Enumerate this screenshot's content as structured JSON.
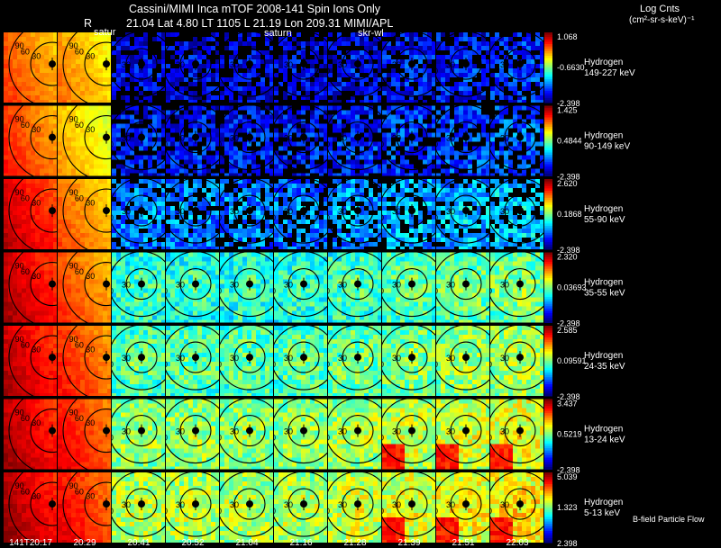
{
  "header": {
    "title_line": "Cassini/MIMI Inca mTOF  2008-141   Spin   Ions Only",
    "info_line": "21.04 Lat 4.80 LT 1105 L       21.19 Lon       209.31   MIMI/APL",
    "r_label": "R",
    "col_labels": {
      "saturn_a": "satur",
      "saturn_b": "saturn",
      "skr": "skr-wl"
    },
    "units_title": "Log Cnts",
    "units_line": "(cm²-sr-s-keV)⁻¹"
  },
  "footer": {
    "time_first": "141T20:17",
    "bfield_label": "B-field Particle Flow"
  },
  "chart_data": {
    "type": "heatmap",
    "title": "Cassini/MIMI Inca mTOF  2008-141   Spin   Ions Only",
    "times": [
      "141T20:17",
      "20:29",
      "20:41",
      "20:52",
      "21:04",
      "21:16",
      "21:28",
      "21:39",
      "21:51",
      "22:03"
    ],
    "species": "Hydrogen",
    "colorscale": [
      "#000080",
      "#0000ff",
      "#0080ff",
      "#00ffff",
      "#80ff80",
      "#ffff00",
      "#ff8000",
      "#ff0000",
      "#800000"
    ],
    "contour_levels": [
      "30",
      "60",
      "90"
    ],
    "energy_bands": [
      {
        "name": "Hydrogen",
        "energy": "149-227 keV",
        "cmax": "1.068",
        "cmid": "-0.6630",
        "cmin": "-2.398",
        "level": 0.12,
        "first_cols": [
          0.72,
          0.66
        ]
      },
      {
        "name": "Hydrogen",
        "energy": "90-149 keV",
        "cmax": "1.425",
        "cmid": "0.4844",
        "cmin": "-2.398",
        "level": 0.17,
        "first_cols": [
          0.75,
          0.62
        ]
      },
      {
        "name": "Hydrogen",
        "energy": "55-90 keV",
        "cmax": "2.620",
        "cmid": "0.1868",
        "cmin": "-2.398",
        "level": 0.28,
        "first_cols": [
          0.84,
          0.7
        ]
      },
      {
        "name": "Hydrogen",
        "energy": "35-55 keV",
        "cmax": "2.320",
        "cmid": "0.03693",
        "cmin": "-2.398",
        "level": 0.45,
        "first_cols": [
          0.86,
          0.73
        ]
      },
      {
        "name": "Hydrogen",
        "energy": "24-35 keV",
        "cmax": "2.585",
        "cmid": "0.09591",
        "cmin": "-2.398",
        "level": 0.49,
        "first_cols": [
          0.86,
          0.76
        ]
      },
      {
        "name": "Hydrogen",
        "energy": "13-24 keV",
        "cmax": "3.437",
        "cmid": "0.5219",
        "cmin": "-2.398",
        "level": 0.55,
        "first_cols": [
          0.87,
          0.79
        ]
      },
      {
        "name": "Hydrogen",
        "energy": "5-13 keV",
        "cmax": "5.039",
        "cmid": "1.323",
        "cmin": "2.398",
        "level": 0.58,
        "first_cols": [
          0.88,
          0.8
        ]
      }
    ]
  }
}
